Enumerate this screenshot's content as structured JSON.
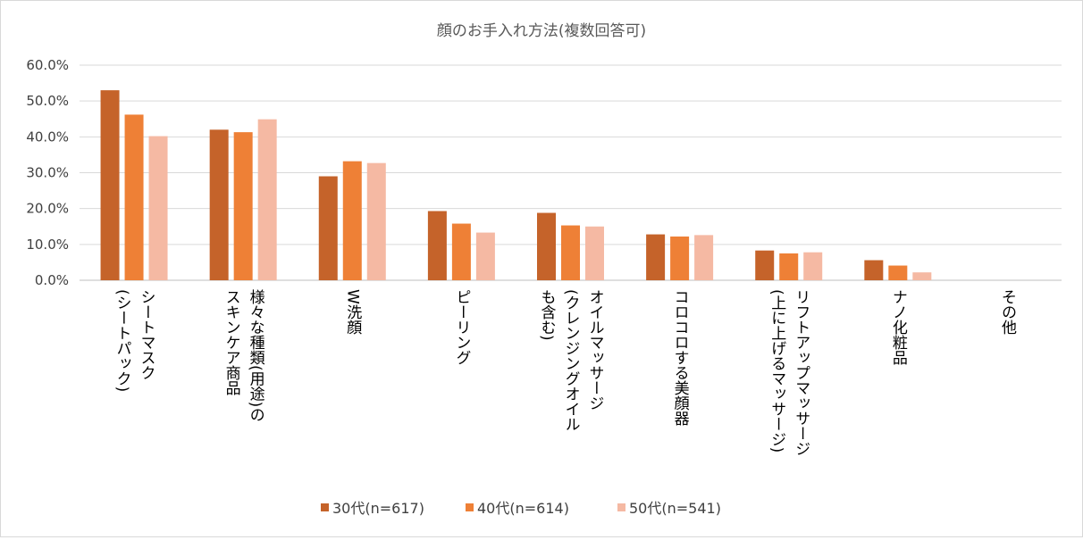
{
  "chart_data": {
    "type": "bar",
    "title": "顔のお手入れ方法(複数回答可)",
    "xlabel": "",
    "ylabel": "",
    "ylim": [
      0,
      60
    ],
    "yticks": [
      "0.0%",
      "10.0%",
      "20.0%",
      "30.0%",
      "40.0%",
      "50.0%",
      "60.0%"
    ],
    "grid": true,
    "legend_position": "bottom",
    "categories": [
      {
        "lines": [
          "シートマスク",
          "(シートパック)"
        ]
      },
      {
        "lines": [
          "様々な種類(用途)の",
          "スキンケア商品"
        ]
      },
      {
        "lines": [
          "W洗顔"
        ]
      },
      {
        "lines": [
          "ピーリング"
        ]
      },
      {
        "lines": [
          "オイルマッサージ",
          "(クレンジングオイル",
          "も含む)"
        ]
      },
      {
        "lines": [
          "コロコロする美顔器"
        ]
      },
      {
        "lines": [
          "リフトアップマッサージ",
          "(上に上げるマッサージ)"
        ]
      },
      {
        "lines": [
          "ナノ化粧品"
        ]
      },
      {
        "lines": [
          "その他"
        ]
      }
    ],
    "series": [
      {
        "name": "30代(n=617)",
        "color": "#c5632a",
        "values": [
          53.0,
          42.0,
          29.0,
          19.3,
          18.8,
          12.8,
          8.3,
          5.6,
          0.0
        ]
      },
      {
        "name": "40代(n=614)",
        "color": "#ee8036",
        "values": [
          46.2,
          41.3,
          33.2,
          15.8,
          15.3,
          12.2,
          7.5,
          4.1,
          0.0
        ]
      },
      {
        "name": "50代(n=541)",
        "color": "#f5b9a3",
        "values": [
          40.2,
          44.9,
          32.7,
          13.3,
          15.0,
          12.6,
          7.8,
          2.2,
          0.0
        ]
      }
    ]
  }
}
